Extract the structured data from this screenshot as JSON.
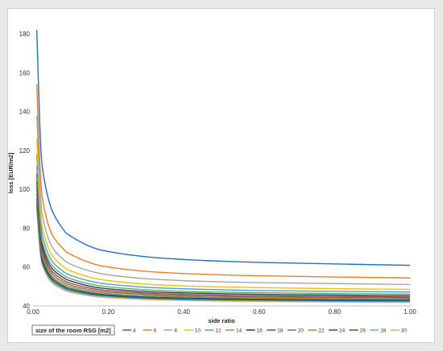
{
  "chart_data": {
    "type": "line",
    "title": "",
    "xlabel": "side ratio",
    "ylabel": "loss [EUR/m2]",
    "xlim": [
      0,
      1.0
    ],
    "ylim": [
      40,
      185
    ],
    "x_ticks": [
      "0.00",
      "0.20",
      "0.40",
      "0.60",
      "0.80",
      "1.00"
    ],
    "y_ticks": [
      "40",
      "60",
      "80",
      "100",
      "120",
      "140",
      "160",
      "180"
    ],
    "grid": false,
    "legend": {
      "title": "size of the room RSG [m2]",
      "placement": "bottom"
    },
    "x": [
      0.01,
      0.02,
      0.03,
      0.05,
      0.08,
      0.1,
      0.15,
      0.2,
      0.3,
      0.4,
      0.5,
      0.6,
      0.8,
      1.0
    ],
    "series": [
      {
        "name": "4",
        "color": "#1f6fc5",
        "values": [
          182.0,
          124.0,
          104.8,
          89.4,
          79.4,
          75.9,
          70.7,
          68.0,
          65.3,
          63.9,
          63.0,
          62.4,
          61.6,
          60.9
        ]
      },
      {
        "name": "6",
        "color": "#f07c2a",
        "values": [
          154.0,
          106.0,
          90.0,
          77.0,
          69.4,
          66.5,
          62.3,
          60.0,
          57.8,
          56.7,
          56.0,
          55.5,
          54.9,
          54.4
        ]
      },
      {
        "name": "8",
        "color": "#a5a5a5",
        "values": [
          138.0,
          96.0,
          82.0,
          70.5,
          64.0,
          61.5,
          58.0,
          56.0,
          54.0,
          53.0,
          52.4,
          52.0,
          51.5,
          51.0
        ]
      },
      {
        "name": "10",
        "color": "#f2c200",
        "values": [
          126.0,
          88.8,
          76.3,
          66.2,
          60.3,
          58.0,
          54.8,
          53.0,
          51.2,
          50.3,
          49.8,
          49.4,
          48.9,
          48.5
        ]
      },
      {
        "name": "12",
        "color": "#4a9fd8",
        "values": [
          118.0,
          84.0,
          72.5,
          63.2,
          57.8,
          55.7,
          52.8,
          51.2,
          49.6,
          48.8,
          48.3,
          47.9,
          47.5,
          47.2
        ]
      },
      {
        "name": "14",
        "color": "#6ab04c",
        "values": [
          112.0,
          80.0,
          69.5,
          61.0,
          56.0,
          54.0,
          51.3,
          49.8,
          48.3,
          47.5,
          47.1,
          46.8,
          46.4,
          46.1
        ]
      },
      {
        "name": "16",
        "color": "#1c3d7a",
        "values": [
          108.0,
          77.5,
          67.5,
          59.4,
          54.7,
          52.8,
          50.2,
          48.8,
          47.4,
          46.7,
          46.3,
          46.0,
          45.6,
          45.3
        ]
      },
      {
        "name": "18",
        "color": "#a8421b",
        "values": [
          104.0,
          75.0,
          65.6,
          57.9,
          53.4,
          51.6,
          49.2,
          47.9,
          46.6,
          45.9,
          45.5,
          45.2,
          44.9,
          44.6
        ]
      },
      {
        "name": "20",
        "color": "#707070",
        "values": [
          101.0,
          73.0,
          64.0,
          56.6,
          52.3,
          50.6,
          48.3,
          47.1,
          45.9,
          45.2,
          44.9,
          44.6,
          44.3,
          44.0
        ]
      },
      {
        "name": "22",
        "color": "#b08a1e",
        "values": [
          98.0,
          71.2,
          62.5,
          55.4,
          51.3,
          49.7,
          47.5,
          46.4,
          45.2,
          44.6,
          44.3,
          44.0,
          43.7,
          43.5
        ]
      },
      {
        "name": "24",
        "color": "#1b5a8a",
        "values": [
          95.5,
          69.6,
          61.2,
          54.4,
          50.4,
          48.9,
          46.8,
          45.7,
          44.6,
          44.1,
          43.8,
          43.5,
          43.2,
          43.0
        ]
      },
      {
        "name": "26",
        "color": "#2e6e1f",
        "values": [
          93.5,
          68.3,
          60.1,
          53.5,
          49.7,
          48.2,
          46.2,
          45.2,
          44.1,
          43.6,
          43.3,
          43.1,
          42.8,
          42.6
        ]
      },
      {
        "name": "28",
        "color": "#6aa5e0",
        "values": [
          91.5,
          67.0,
          59.1,
          52.7,
          49.0,
          47.6,
          45.7,
          44.7,
          43.7,
          43.2,
          42.9,
          42.7,
          42.4,
          42.2
        ]
      },
      {
        "name": "30",
        "color": "#f4a46a",
        "values": [
          90.0,
          66.0,
          58.3,
          52.0,
          48.4,
          47.0,
          45.2,
          44.2,
          43.3,
          42.8,
          42.5,
          42.3,
          42.0,
          41.8
        ]
      }
    ]
  }
}
